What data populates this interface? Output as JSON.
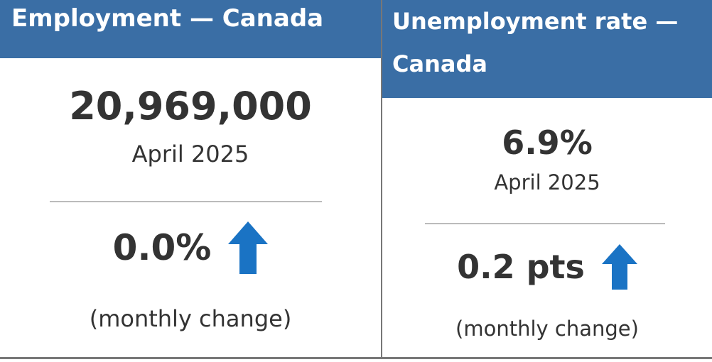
{
  "cards": [
    {
      "title": "Employment — Canada",
      "value": "20,969,000",
      "date": "April 2025",
      "change": "0.0%",
      "change_label": "(monthly change)"
    },
    {
      "title": "Unemployment rate — Canada",
      "value": "6.9%",
      "date": "April 2025",
      "change": "0.2 pts",
      "change_label": "(monthly change)"
    }
  ]
}
